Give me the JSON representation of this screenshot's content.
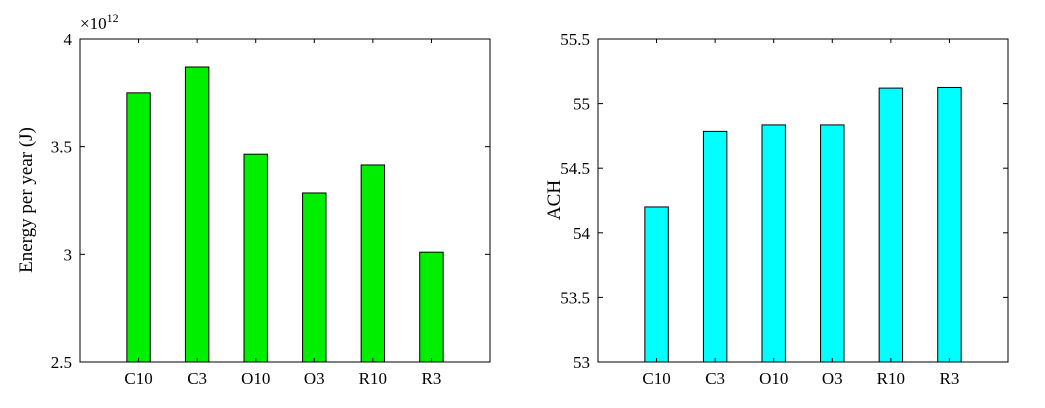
{
  "chart_data": [
    {
      "type": "bar",
      "categories": [
        "C10",
        "C3",
        "O10",
        "O3",
        "R10",
        "R3"
      ],
      "values": [
        3.75,
        3.87,
        3.465,
        3.285,
        3.415,
        3.01
      ],
      "ylabel": "Energy per year (J)",
      "xlabel": "",
      "ylim": [
        2.5,
        4
      ],
      "yticks": [
        "2.5",
        "3",
        "3.5",
        "4"
      ],
      "exponent_label": "×10",
      "exponent_power": "12",
      "bar_color": "#00ee00",
      "grid": false
    },
    {
      "type": "bar",
      "categories": [
        "C10",
        "C3",
        "O10",
        "O3",
        "R10",
        "R3"
      ],
      "values": [
        54.2,
        54.785,
        54.835,
        54.835,
        55.12,
        55.125
      ],
      "ylabel": "ACH",
      "xlabel": "",
      "ylim": [
        53,
        55.5
      ],
      "yticks": [
        "53",
        "53.5",
        "54",
        "54.5",
        "55",
        "55.5"
      ],
      "bar_color": "#00ffff",
      "grid": false
    }
  ]
}
